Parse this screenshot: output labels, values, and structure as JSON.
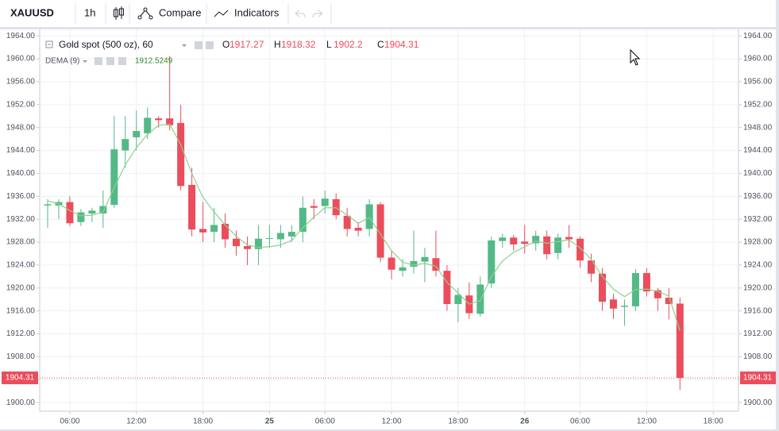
{
  "toolbar": {
    "symbol": "XAUUSD",
    "interval": "1h",
    "compare": "Compare",
    "indicators": "Indicators"
  },
  "chart_data": {
    "type": "candlestick",
    "title": "Gold spot (500 oz), 60",
    "ohlc_labels": [
      "O",
      "H",
      "L",
      "C"
    ],
    "up_color": "#53b987",
    "down_color": "#eb4d5c",
    "categories": [
      null,
      null,
      "06:00",
      null,
      null,
      null,
      null,
      null,
      "12:00",
      null,
      null,
      null,
      null,
      null,
      "18:00",
      null,
      null,
      null,
      null,
      null,
      "25",
      null,
      null,
      null,
      null,
      "06:00",
      null,
      null,
      null,
      null,
      null,
      "12:00",
      null,
      null,
      null,
      null,
      null,
      "18:00",
      null,
      null,
      null,
      null,
      null,
      "26",
      null,
      null,
      null,
      null,
      "06:00",
      null,
      null,
      null,
      null,
      null,
      "12:00",
      null,
      null,
      null,
      null,
      null,
      "18:00"
    ],
    "open": [
      1934.4,
      1934.4,
      1935,
      1931.5,
      1933,
      1933,
      1934.5,
      1944,
      1946.3,
      1947,
      1949.6,
      1949.6,
      1948.8,
      1938,
      1930.3,
      1929.8,
      1931.2,
      1928.6,
      1927.3,
      1926.8,
      1928.6,
      1928.5,
      1929,
      1929.8,
      1934.3,
      1934.3,
      1935.5,
      1932.6,
      1930.5,
      1930.3,
      1934.6,
      1925.3,
      1923,
      1923.7,
      1924.6,
      1925.2,
      1923,
      1917.2,
      1918.7,
      1915.5,
      1920.8,
      1928.2,
      1928.8,
      1928.1,
      1927.8,
      1929,
      1926.1,
      1928.9,
      1928.6,
      1924.8,
      1922.5,
      1918,
      1916.7,
      1916.8,
      1922.6,
      1919.6,
      1918.3,
      1917.27,
      null,
      null,
      null
    ],
    "high": [
      1935.5,
      1935.5,
      1936,
      1933.8,
      1934,
      1937,
      1950,
      1950,
      1951,
      1951.5,
      1950,
      1960.5,
      1952,
      1941,
      1935,
      1934,
      1933,
      1930,
      1929,
      1931,
      1931,
      1931,
      1931,
      1936,
      1935.5,
      1937,
      1936.5,
      1934,
      1931.5,
      1935.5,
      1935,
      1926.5,
      1925,
      1930,
      1927,
      1930,
      1924,
      1920,
      1921,
      1922,
      1929,
      1929.5,
      1929.3,
      1931,
      1930,
      1930,
      1929.5,
      1931,
      1929,
      1926,
      1923.5,
      1919,
      1918,
      1923.3,
      1923.5,
      1920,
      1920,
      1918.32,
      null,
      null,
      null
    ],
    "low": [
      1930.5,
      1932,
      1930.8,
      1930.8,
      1931.5,
      1930.5,
      1934,
      1941,
      1944,
      1946,
      1948,
      1947.5,
      1937,
      1929,
      1928,
      1928,
      1927,
      1925.6,
      1924,
      1924,
      1927,
      1927,
      1928,
      1928,
      1932,
      1933,
      1932,
      1929,
      1929,
      1929,
      1924.5,
      1921.5,
      1922,
      1922.5,
      1921,
      1922,
      1916,
      1914,
      1914.6,
      1915,
      1920,
      1927,
      1926.5,
      1926,
      1926.5,
      1925,
      1925,
      1927,
      1923.5,
      1921,
      1916,
      1914.6,
      1913.4,
      1916,
      1918.5,
      1916,
      1914.5,
      1902.2,
      null,
      null,
      null
    ],
    "close": [
      1934.6,
      1935,
      1931.3,
      1933.2,
      1933.5,
      1934.3,
      1944.2,
      1946,
      1947.4,
      1949.7,
      1949.3,
      1948.4,
      1937.8,
      1930.2,
      1929.7,
      1931,
      1928.5,
      1927.3,
      1926.8,
      1928.6,
      1928.7,
      1929.6,
      1929.8,
      1934,
      1934,
      1935.6,
      1932.7,
      1930.3,
      1930,
      1934.6,
      1925.3,
      1923.2,
      1923.6,
      1924.7,
      1925.4,
      1923,
      1917.2,
      1918.8,
      1915.6,
      1920.6,
      1928.3,
      1928.8,
      1927.6,
      1927.7,
      1929.1,
      1925.9,
      1928.8,
      1928.5,
      1924.8,
      1922.5,
      1917.6,
      1916.4,
      1916.9,
      1922.6,
      1919.4,
      1918.2,
      1917.2,
      1904.31,
      null,
      null,
      null
    ],
    "indicator": {
      "name": "DEMA (9)",
      "color": "#8fd08f",
      "values": [
        1935.2,
        1934.7,
        1933.5,
        1932.6,
        1932.7,
        1933.3,
        1937.5,
        1941.5,
        1944.5,
        1946.8,
        1948.4,
        1948.6,
        1945,
        1940,
        1935.8,
        1933.3,
        1931,
        1929,
        1927.5,
        1927.1,
        1927.2,
        1927.5,
        1928.3,
        1930.5,
        1932.4,
        1934,
        1934,
        1932.7,
        1931.3,
        1932.3,
        1929.4,
        1926.5,
        1924.5,
        1924,
        1924.3,
        1923.8,
        1921,
        1919.1,
        1917.2,
        1917.8,
        1922,
        1924.7,
        1926.2,
        1927.2,
        1928.2,
        1927.8,
        1928.1,
        1928.4,
        1927,
        1925,
        1922,
        1919.8,
        1918.5,
        1919.7,
        1919.8,
        1919.4,
        1918.6,
        1912.5249,
        null,
        null,
        null
      ]
    },
    "ylim": [
      1898.5,
      1965
    ],
    "yticks": [
      {
        "value": 1900,
        "label": "1900.00"
      },
      {
        "value": 1904,
        "label": "1904.00"
      },
      {
        "value": 1908,
        "label": "1908.00"
      },
      {
        "value": 1912,
        "label": "1912.00"
      },
      {
        "value": 1916,
        "label": "1916.00"
      },
      {
        "value": 1920,
        "label": "1920.00"
      },
      {
        "value": 1924,
        "label": "1924.00"
      },
      {
        "value": 1928,
        "label": "1928.00"
      },
      {
        "value": 1932,
        "label": "1932.00"
      },
      {
        "value": 1936,
        "label": "1936.00"
      },
      {
        "value": 1940,
        "label": "1940.00"
      },
      {
        "value": 1944,
        "label": "1944.00"
      },
      {
        "value": 1948,
        "label": "1948.00"
      },
      {
        "value": 1952,
        "label": "1952.00"
      },
      {
        "value": 1956,
        "label": "1956.00"
      },
      {
        "value": 1960,
        "label": "1960.00"
      },
      {
        "value": 1964,
        "label": "1964.00"
      }
    ],
    "grid": true
  }
}
